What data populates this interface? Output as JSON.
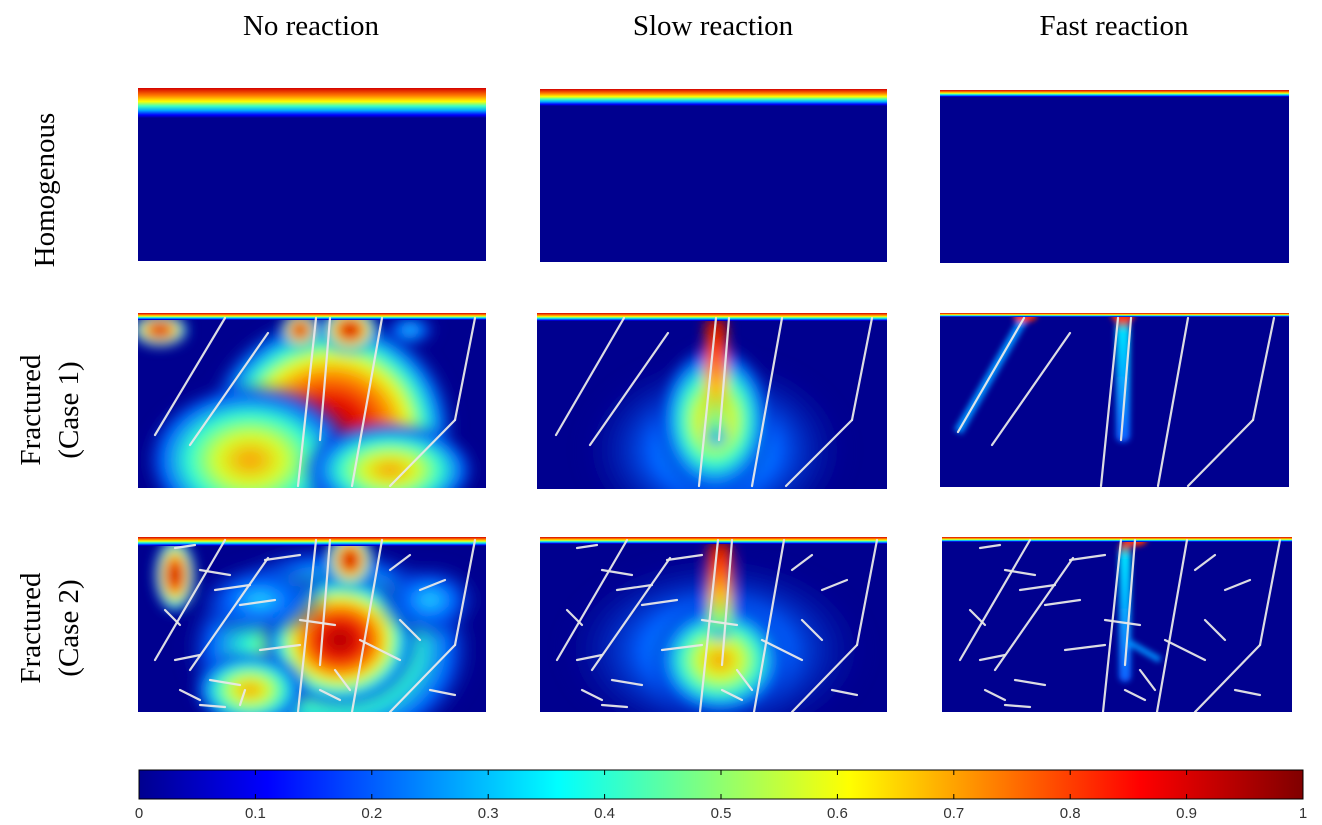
{
  "column_titles": [
    "No reaction",
    "Slow reaction",
    "Fast reaction"
  ],
  "row_titles": [
    {
      "line1": "Homogenous",
      "line2": ""
    },
    {
      "line1": "Fractured",
      "line2": "(Case 1)"
    },
    {
      "line1": "Fractured",
      "line2": "(Case 2)"
    }
  ],
  "colorbar": {
    "colormap": "jet",
    "min": 0,
    "max": 1,
    "ticks": [
      "0",
      "0.1",
      "0.2",
      "0.3",
      "0.4",
      "0.5",
      "0.6",
      "0.7",
      "0.8",
      "0.9",
      "1"
    ]
  },
  "colors": {
    "field_background": "#00008f",
    "fracture_line": "#e8e8e8"
  }
}
